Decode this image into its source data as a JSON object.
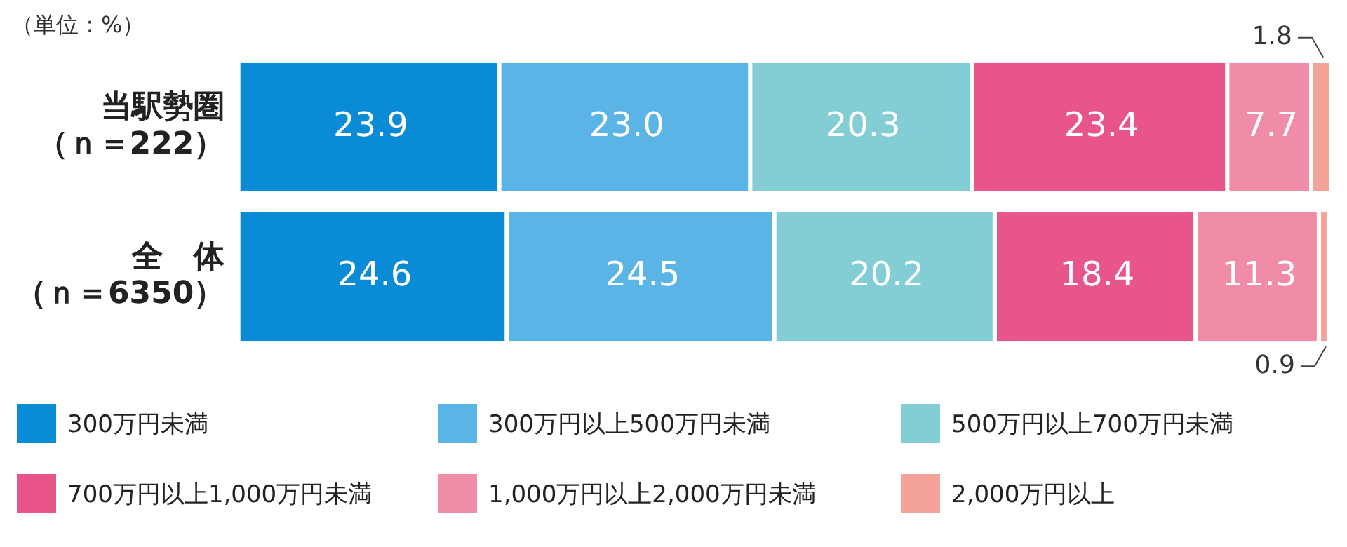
{
  "chart_data": {
    "type": "bar",
    "orientation": "horizontal",
    "stacked": true,
    "annotations": [
      "（単位：%）"
    ],
    "categories": [
      "当駅勢圏（ｎ＝222）",
      "全　体（ｎ＝6350）"
    ],
    "series": [
      {
        "name": "300万円未満",
        "color": "#0a8bd6",
        "values": [
          23.9,
          24.6
        ],
        "value_labels": [
          "23.9",
          "24.6"
        ]
      },
      {
        "name": "300万円以上500万円未満",
        "color": "#5ab4e5",
        "values": [
          23.0,
          24.5
        ],
        "value_labels": [
          "23.0",
          "24.5"
        ]
      },
      {
        "name": "500万円以上700万円未満",
        "color": "#83cdd4",
        "values": [
          20.3,
          20.2
        ],
        "value_labels": [
          "20.3",
          "20.2"
        ]
      },
      {
        "name": "700万円以上1,000万円未満",
        "color": "#e8558a",
        "values": [
          23.4,
          18.4
        ],
        "value_labels": [
          "23.4",
          "18.4"
        ]
      },
      {
        "name": "1,000万円以上2,000万円未満",
        "color": "#f08ca5",
        "values": [
          7.7,
          11.3
        ],
        "value_labels": [
          "7.7",
          "11.3"
        ]
      },
      {
        "name": "2,000万円以上",
        "color": "#f4a39a",
        "values": [
          1.8,
          0.9
        ],
        "value_labels": [
          "1.8",
          "0.9"
        ]
      }
    ],
    "xlim": [
      0,
      100.1
    ],
    "tick_labels": "y",
    "legend": "bottom"
  }
}
